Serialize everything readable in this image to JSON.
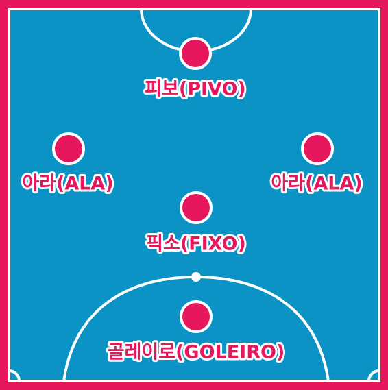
{
  "colors": {
    "frame": "#e6175c",
    "court": "#0b93c6",
    "lines": "#ffffff",
    "player": "#e6175c"
  },
  "positions": [
    {
      "id": "pivo",
      "label": "피보(PIVO)"
    },
    {
      "id": "ala-left",
      "label": "아라(ALA)"
    },
    {
      "id": "ala-right",
      "label": "아라(ALA)"
    },
    {
      "id": "fixo",
      "label": "픽소(FIXO)"
    },
    {
      "id": "goleiro",
      "label": "골레이로(GOLEIRO)"
    }
  ]
}
